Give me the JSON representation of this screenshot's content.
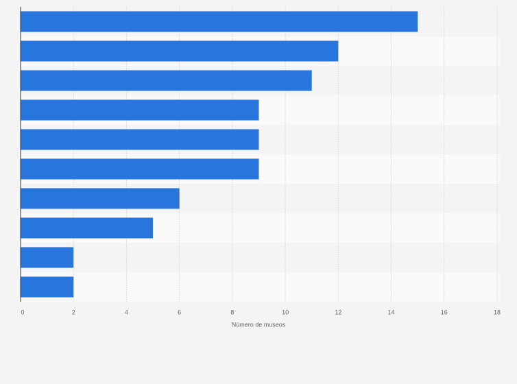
{
  "chart_data": {
    "type": "bar",
    "orientation": "horizontal",
    "categories": [
      null,
      null,
      null,
      null,
      null,
      null,
      null,
      null,
      null,
      null
    ],
    "values": [
      15,
      12,
      11,
      9,
      9,
      9,
      6,
      5,
      2,
      2
    ],
    "color": "#2876dd",
    "xlabel": "Número de museos",
    "xlim": [
      0,
      18
    ],
    "xticks": [
      0,
      2,
      4,
      6,
      8,
      10,
      12,
      14,
      16,
      18
    ],
    "grid": true
  }
}
